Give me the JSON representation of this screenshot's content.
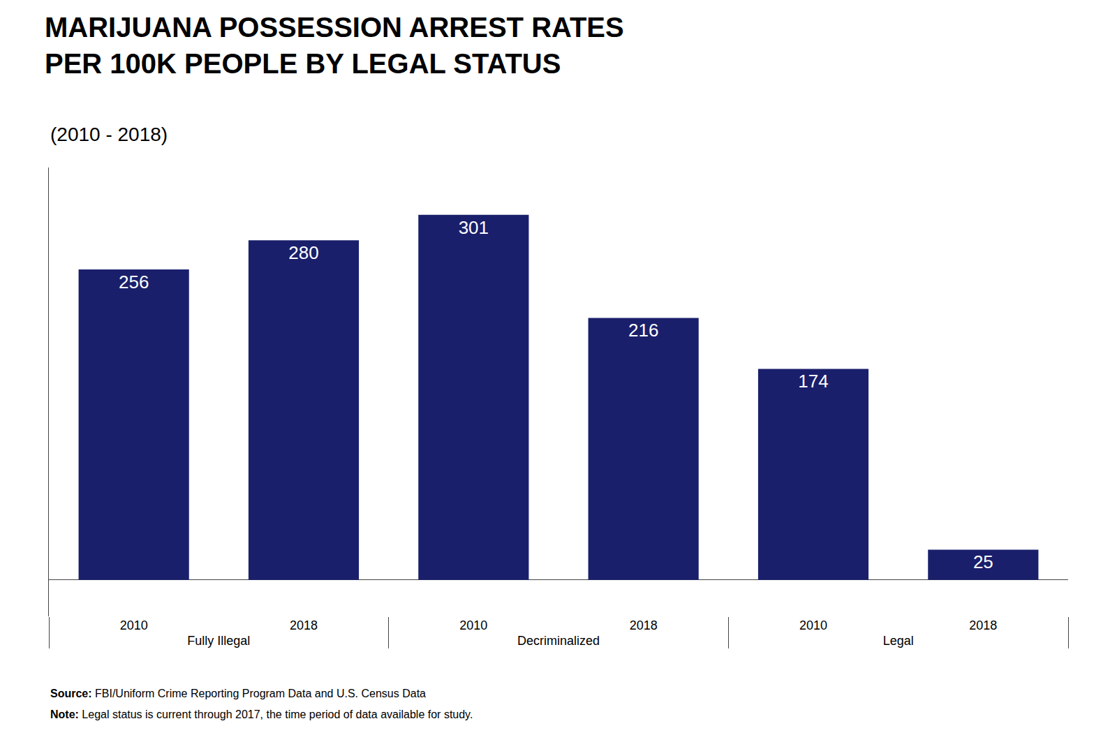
{
  "chart_data": {
    "type": "bar",
    "title": "MARIJUANA POSSESSION ARREST RATES\nPER 100K PEOPLE BY LEGAL STATUS",
    "subtitle": "(2010 - 2018)",
    "categories": [
      "Fully Illegal",
      "Decriminalized",
      "Legal"
    ],
    "series": [
      {
        "name": "2010",
        "values": [
          256,
          301,
          174
        ]
      },
      {
        "name": "2018",
        "values": [
          280,
          216,
          25
        ]
      }
    ],
    "color": "#1a1f6b",
    "ylim": [
      -30,
      340
    ],
    "grid": false,
    "data_labels": true,
    "tick_labels": "x",
    "annotations": [
      "Source: FBI/Uniform Crime Reporting Program Data and U.S. Census Data",
      "Note: Legal status is current through 2017, the time period of data available for study."
    ]
  }
}
